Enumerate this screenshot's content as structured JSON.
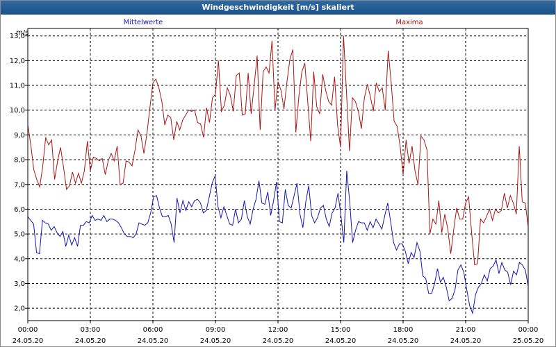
{
  "window": {
    "title": "Windgeschwindigkeit [m/s] skaliert"
  },
  "colors": {
    "mean": "#1414b4",
    "max": "#aa1414",
    "title_bar": "#1c5088",
    "grid": "#000000"
  },
  "chart_data": {
    "type": "line",
    "title": "Windgeschwindigkeit [m/s] skaliert",
    "ylabel": "m/s",
    "ylim": [
      1.5,
      13.3
    ],
    "yticks": [
      "2,0",
      "3,0",
      "4,0",
      "5,0",
      "6,0",
      "7,0",
      "8,0",
      "9,0",
      "10,0",
      "11,0",
      "12,0",
      "13,0"
    ],
    "xlim": [
      0,
      24
    ],
    "xticks": [
      {
        "time": "00:00",
        "date": "24.05.20"
      },
      {
        "time": "03:00",
        "date": "24.05.20"
      },
      {
        "time": "06:00",
        "date": "24.05.20"
      },
      {
        "time": "09:00",
        "date": "24.05.20"
      },
      {
        "time": "12:00",
        "date": "24.05.20"
      },
      {
        "time": "15:00",
        "date": "24.05.20"
      },
      {
        "time": "18:00",
        "date": "24.05.20"
      },
      {
        "time": "21:00",
        "date": "24.05.20"
      },
      {
        "time": "00:00",
        "date": "25.05.20"
      }
    ],
    "grid": true,
    "series": [
      {
        "name": "Mittelwerte",
        "color": "#1414b4",
        "values": [
          5.7,
          5.55,
          5.4,
          4.25,
          4.2,
          5.55,
          5.45,
          5.4,
          5.15,
          5.3,
          5.05,
          4.9,
          5.1,
          4.5,
          4.95,
          4.55,
          4.85,
          4.5,
          5.35,
          5.35,
          5.5,
          5.45,
          5.75,
          5.55,
          5.6,
          5.55,
          5.75,
          5.5,
          5.6,
          5.6,
          5.55,
          5.45,
          5.25,
          5.0,
          4.9,
          4.9,
          4.85,
          5.0,
          5.45,
          5.4,
          5.35,
          5.45,
          5.85,
          6.5,
          6.55,
          6.05,
          5.7,
          5.7,
          5.75,
          5.4,
          4.65,
          6.45,
          5.85,
          6.35,
          5.95,
          6.3,
          6.1,
          6.35,
          6.4,
          6.25,
          5.85,
          5.95,
          6.5,
          7.05,
          7.35,
          6.1,
          5.65,
          6.1,
          5.75,
          5.4,
          5.35,
          6.0,
          5.45,
          5.6,
          6.35,
          5.7,
          5.4,
          6.0,
          6.4,
          7.15,
          6.25,
          6.2,
          6.7,
          5.75,
          6.35,
          7.1,
          5.5,
          5.45,
          6.8,
          6.15,
          6.05,
          6.55,
          7.05,
          5.8,
          5.25,
          6.3,
          6.95,
          5.75,
          5.45,
          5.65,
          6.05,
          6.15,
          5.6,
          5.3,
          5.85,
          6.05,
          6.65,
          5.75,
          4.65,
          7.55,
          6.3,
          4.65,
          5.15,
          5.5,
          5.45,
          5.45,
          5.15,
          5.5,
          5.25,
          5.6,
          5.4,
          5.2,
          5.75,
          6.25,
          5.5,
          4.65,
          4.35,
          4.6,
          4.6,
          4.3,
          3.8,
          4.25,
          4.05,
          4.65,
          4.3,
          3.3,
          3.2,
          2.6,
          2.6,
          3.0,
          3.6,
          3.05,
          3.25,
          2.85,
          2.3,
          2.4,
          2.75,
          3.55,
          3.75,
          3.45,
          2.75,
          2.1,
          1.8,
          2.55,
          2.85,
          3.0,
          3.35,
          3.1,
          3.6,
          3.7,
          3.95,
          3.4,
          3.85,
          3.55,
          3.45,
          2.95,
          3.5,
          3.35,
          3.85,
          3.75,
          3.55,
          2.9
        ]
      },
      {
        "name": "Maxima",
        "color": "#aa1414",
        "values": [
          9.4,
          8.6,
          7.6,
          7.2,
          6.9,
          7.7,
          8.9,
          8.6,
          8.8,
          7.2,
          7.95,
          8.5,
          7.7,
          6.8,
          6.95,
          7.5,
          7.05,
          7.45,
          7.05,
          7.55,
          8.75,
          7.55,
          8.1,
          8.05,
          7.95,
          8.05,
          7.4,
          7.95,
          8.25,
          7.95,
          8.55,
          7.0,
          7.05,
          7.95,
          7.9,
          7.75,
          8.4,
          9.2,
          8.95,
          8.25,
          9.05,
          10.1,
          11.1,
          11.25,
          10.9,
          10.35,
          9.4,
          9.8,
          9.7,
          8.8,
          9.55,
          9.2,
          9.6,
          9.8,
          10.0,
          9.95,
          10.0,
          9.5,
          9.45,
          8.9,
          10.1,
          9.5,
          10.5,
          10.65,
          12.0,
          9.95,
          10.2,
          10.9,
          10.6,
          9.95,
          11.4,
          11.5,
          9.8,
          9.85,
          11.5,
          9.85,
          11.0,
          12.2,
          9.2,
          11.55,
          11.75,
          11.5,
          12.8,
          10.0,
          11.15,
          10.8,
          10.05,
          11.15,
          12.05,
          12.45,
          9.1,
          10.55,
          11.55,
          11.9,
          10.3,
          8.75,
          11.55,
          10.15,
          9.85,
          11.45,
          10.8,
          10.35,
          10.2,
          11.35,
          9.4,
          8.5,
          13.0,
          10.7,
          8.35,
          10.5,
          10.35,
          9.95,
          9.25,
          10.5,
          11.05,
          10.55,
          9.95,
          11.1,
          10.75,
          10.9,
          10.0,
          12.4,
          11.1,
          9.55,
          9.35,
          8.55,
          7.4,
          8.8,
          7.85,
          8.55,
          7.55,
          7.0,
          8.95,
          8.8,
          8.4,
          5.0,
          5.6,
          5.4,
          6.35,
          5.05,
          5.8,
          5.2,
          4.2,
          5.2,
          6.05,
          5.6,
          5.6,
          6.25,
          6.5,
          5.05,
          3.75,
          3.8,
          5.6,
          5.45,
          5.7,
          6.0,
          5.55,
          6.0,
          5.85,
          5.95,
          6.65,
          6.05,
          6.55,
          6.25,
          5.8,
          8.55,
          6.3,
          6.25,
          5.3
        ]
      }
    ]
  }
}
